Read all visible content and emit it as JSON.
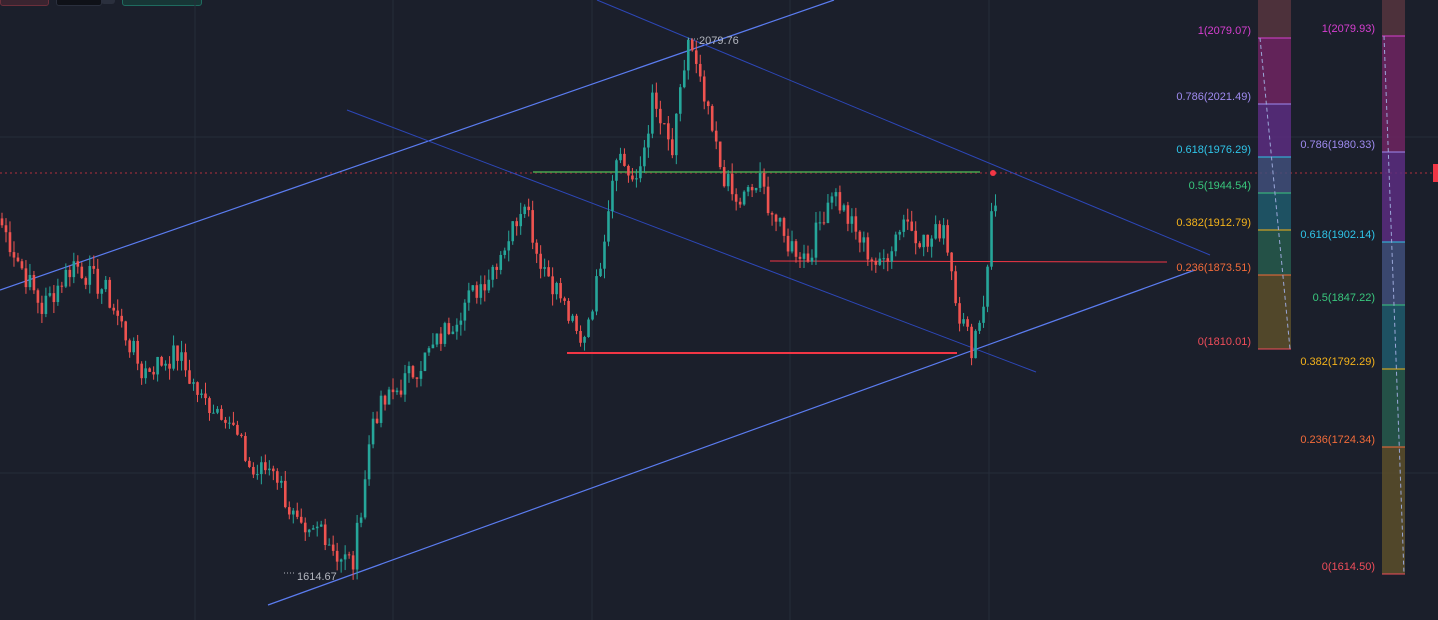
{
  "toolbar": {
    "buttons": [
      "red",
      "dark",
      "teal"
    ]
  },
  "chart_data": {
    "type": "candlestick",
    "instrument_hint": "",
    "colors": {
      "background": "#1b1f2b",
      "grid": "#262c3a",
      "up": "#26a69a",
      "down": "#ef5350",
      "channel": "#5b7cf0",
      "channel_dark": "#2d47b8",
      "support_line": "#f23645",
      "resistance_line": "#4caf50",
      "price_line": "#f23645"
    },
    "price_labels": {
      "high": "2079.76",
      "low": "1614.67"
    },
    "current_price_marker": "",
    "fib_retracement_1": {
      "levels": [
        {
          "ratio": "1",
          "price": "2079.07",
          "label": "1(2079.07)",
          "color": "#d63fd0",
          "fill": "#6f2461"
        },
        {
          "ratio": "0.786",
          "price": "2021.49",
          "label": "0.786(2021.49)",
          "color": "#9f8bf0",
          "fill": "#5a2d80"
        },
        {
          "ratio": "0.618",
          "price": "1976.29",
          "label": "0.618(1976.29)",
          "color": "#2fc4e8",
          "fill": "#3f4f7a"
        },
        {
          "ratio": "0.5",
          "price": "1944.54",
          "label": "0.5(1944.54)",
          "color": "#39c77d",
          "fill": "#1e5a6c"
        },
        {
          "ratio": "0.382",
          "price": "1912.79",
          "label": "0.382(1912.79)",
          "color": "#f5b31b",
          "fill": "#265b4c"
        },
        {
          "ratio": "0.236",
          "price": "1873.51",
          "label": "0.236(1873.51)",
          "color": "#f26b3a",
          "fill": "#5b4f2a"
        },
        {
          "ratio": "0",
          "price": "1810.01",
          "label": "0(1810.01)",
          "color": "#ef4d5a",
          "fill": "#5a3636"
        }
      ]
    },
    "fib_retracement_2": {
      "levels": [
        {
          "ratio": "1",
          "price": "2079.93",
          "label": "1(2079.93)",
          "color": "#d63fd0",
          "fill": "#6f2461"
        },
        {
          "ratio": "0.786",
          "price": "1980.33",
          "label": "0.786(1980.33)",
          "color": "#9f8bf0",
          "fill": "#5a2d80"
        },
        {
          "ratio": "0.618",
          "price": "1902.14",
          "label": "0.618(1902.14)",
          "color": "#2fc4e8",
          "fill": "#3f4f7a"
        },
        {
          "ratio": "0.5",
          "price": "1847.22",
          "label": "0.5(1847.22)",
          "color": "#39c77d",
          "fill": "#1e5a6c"
        },
        {
          "ratio": "0.382",
          "price": "1792.29",
          "label": "0.382(1792.29)",
          "color": "#f5b31b",
          "fill": "#265b4c"
        },
        {
          "ratio": "0.236",
          "price": "1724.34",
          "label": "0.236(1724.34)",
          "color": "#f26b3a",
          "fill": "#5b4f2a"
        },
        {
          "ratio": "0",
          "price": "1614.50",
          "label": "0(1614.50)",
          "color": "#ef4d5a",
          "fill": "#5a3636"
        }
      ]
    },
    "anchors": [
      {
        "i": 0,
        "p": 1918
      },
      {
        "i": 5,
        "p": 1880
      },
      {
        "i": 10,
        "p": 1845
      },
      {
        "i": 18,
        "p": 1885
      },
      {
        "i": 26,
        "p": 1860
      },
      {
        "i": 30,
        "p": 1830
      },
      {
        "i": 35,
        "p": 1790
      },
      {
        "i": 44,
        "p": 1805
      },
      {
        "i": 50,
        "p": 1765
      },
      {
        "i": 56,
        "p": 1755
      },
      {
        "i": 63,
        "p": 1700
      },
      {
        "i": 68,
        "p": 1708
      },
      {
        "i": 72,
        "p": 1670
      },
      {
        "i": 76,
        "p": 1640
      },
      {
        "i": 80,
        "p": 1655
      },
      {
        "i": 84,
        "p": 1630
      },
      {
        "i": 88,
        "p": 1622
      },
      {
        "i": 93,
        "p": 1750
      },
      {
        "i": 100,
        "p": 1778
      },
      {
        "i": 108,
        "p": 1810
      },
      {
        "i": 115,
        "p": 1845
      },
      {
        "i": 122,
        "p": 1875
      },
      {
        "i": 128,
        "p": 1915
      },
      {
        "i": 131,
        "p": 1945
      },
      {
        "i": 134,
        "p": 1895
      },
      {
        "i": 140,
        "p": 1855
      },
      {
        "i": 145,
        "p": 1812
      },
      {
        "i": 149,
        "p": 1865
      },
      {
        "i": 154,
        "p": 1985
      },
      {
        "i": 159,
        "p": 1950
      },
      {
        "i": 163,
        "p": 2025
      },
      {
        "i": 168,
        "p": 1980
      },
      {
        "i": 172,
        "p": 2080
      },
      {
        "i": 176,
        "p": 2025
      },
      {
        "i": 180,
        "p": 1970
      },
      {
        "i": 184,
        "p": 1935
      },
      {
        "i": 190,
        "p": 1955
      },
      {
        "i": 196,
        "p": 1905
      },
      {
        "i": 202,
        "p": 1890
      },
      {
        "i": 208,
        "p": 1950
      },
      {
        "i": 214,
        "p": 1910
      },
      {
        "i": 220,
        "p": 1880
      },
      {
        "i": 226,
        "p": 1925
      },
      {
        "i": 232,
        "p": 1900
      },
      {
        "i": 236,
        "p": 1920
      },
      {
        "i": 240,
        "p": 1840
      },
      {
        "i": 243,
        "p": 1812
      },
      {
        "i": 246,
        "p": 1850
      },
      {
        "i": 248,
        "p": 1925
      },
      {
        "i": 249,
        "p": 1935
      }
    ]
  }
}
